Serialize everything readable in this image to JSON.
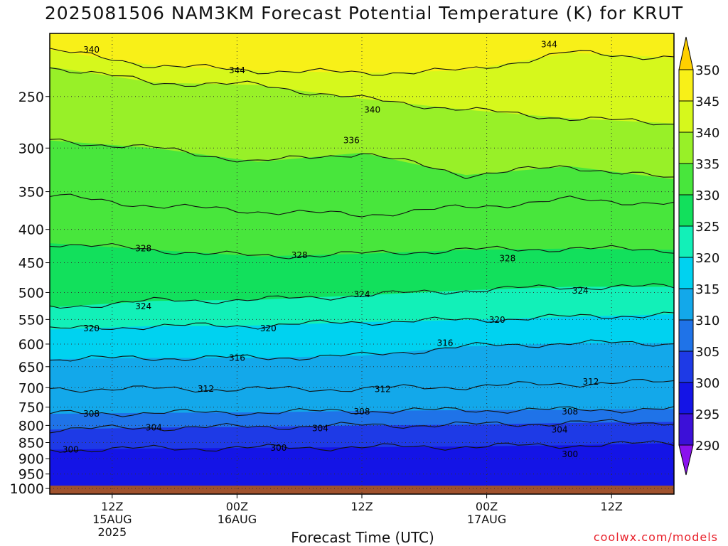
{
  "title": "2025081506 NAM3KM Forecast Potential Temperature (K) for KRUT",
  "xaxis_title": "Forecast Time (UTC)",
  "watermark": "coolwx.com/models",
  "chart_data": {
    "type": "heatmap",
    "title": "2025081506 NAM3KM Forecast Potential Temperature (K) for KRUT",
    "xlabel": "Forecast Time (UTC)",
    "ylabel": "",
    "y_scale": "log-pressure",
    "ylim": [
      1020,
      200
    ],
    "y_ticks": [
      250,
      300,
      350,
      400,
      450,
      500,
      550,
      600,
      650,
      700,
      750,
      800,
      850,
      900,
      950,
      1000
    ],
    "x_range_hours": [
      6,
      66
    ],
    "x_ticks": [
      {
        "hour": 12,
        "lines": [
          "12Z",
          "15AUG",
          "2025"
        ]
      },
      {
        "hour": 24,
        "lines": [
          "00Z",
          "16AUG"
        ]
      },
      {
        "hour": 36,
        "lines": [
          "12Z"
        ]
      },
      {
        "hour": 48,
        "lines": [
          "00Z",
          "17AUG"
        ]
      },
      {
        "hour": 60,
        "lines": [
          "12Z"
        ]
      }
    ],
    "grid": true,
    "colorbar": {
      "placement": "right",
      "levels": [
        290,
        295,
        300,
        305,
        310,
        315,
        320,
        325,
        330,
        335,
        340,
        345,
        350
      ],
      "colors": [
        "#8a12ee",
        "#3c10d8",
        "#1414e6",
        "#1e3ae6",
        "#1f73e8",
        "#13a8ea",
        "#00d2f0",
        "#12f0b8",
        "#12e05c",
        "#48e63c",
        "#98f028",
        "#d6f81c",
        "#f8f018",
        "#ffd000"
      ]
    },
    "contour_interval": 4,
    "contours": [
      {
        "level": 300,
        "pressure": [
          872,
          868,
          866,
          864,
          862,
          858,
          852
        ]
      },
      {
        "level": 304,
        "pressure": [
          812,
          806,
          804,
          800,
          798,
          793,
          790
        ]
      },
      {
        "level": 308,
        "pressure": [
          768,
          765,
          764,
          760,
          758,
          757,
          755
        ]
      },
      {
        "level": 312,
        "pressure": [
          703,
          703,
          704,
          703,
          697,
          690,
          686
        ]
      },
      {
        "level": 316,
        "pressure": [
          633,
          630,
          630,
          625,
          605,
          598,
          598
        ]
      },
      {
        "level": 320,
        "pressure": [
          570,
          563,
          562,
          555,
          551,
          545,
          540
        ]
      },
      {
        "level": 324,
        "pressure": [
          527,
          515,
          513,
          505,
          496,
          490,
          490
        ]
      },
      {
        "level": 328,
        "pressure": [
          420,
          430,
          440,
          436,
          430,
          428,
          430
        ]
      },
      {
        "level": 332,
        "pressure": [
          355,
          368,
          375,
          380,
          370,
          360,
          365
        ]
      },
      {
        "level": 336,
        "pressure": [
          292,
          300,
          315,
          305,
          330,
          320,
          335
        ]
      },
      {
        "level": 340,
        "pressure": [
          225,
          238,
          240,
          252,
          262,
          270,
          275
        ]
      },
      {
        "level": 344,
        "pressure": [
          212,
          224,
          228,
          230,
          228,
          214,
          218
        ]
      }
    ],
    "contour_hours": [
      6,
      16,
      26,
      36,
      46,
      56,
      66
    ],
    "labels": [
      {
        "text": "340",
        "hour": 10,
        "pressure": 212
      },
      {
        "text": "344",
        "hour": 24,
        "pressure": 228
      },
      {
        "text": "340",
        "hour": 37,
        "pressure": 262
      },
      {
        "text": "336",
        "hour": 35,
        "pressure": 292
      },
      {
        "text": "344",
        "hour": 54,
        "pressure": 208
      },
      {
        "text": "328",
        "hour": 15,
        "pressure": 428
      },
      {
        "text": "328",
        "hour": 30,
        "pressure": 438
      },
      {
        "text": "328",
        "hour": 50,
        "pressure": 443
      },
      {
        "text": "324",
        "hour": 15,
        "pressure": 525
      },
      {
        "text": "324",
        "hour": 36,
        "pressure": 503
      },
      {
        "text": "324",
        "hour": 57,
        "pressure": 497
      },
      {
        "text": "320",
        "hour": 10,
        "pressure": 568
      },
      {
        "text": "320",
        "hour": 27,
        "pressure": 568
      },
      {
        "text": "320",
        "hour": 49,
        "pressure": 551
      },
      {
        "text": "316",
        "hour": 24,
        "pressure": 630
      },
      {
        "text": "316",
        "hour": 44,
        "pressure": 598
      },
      {
        "text": "312",
        "hour": 21,
        "pressure": 703
      },
      {
        "text": "312",
        "hour": 38,
        "pressure": 704
      },
      {
        "text": "312",
        "hour": 58,
        "pressure": 686
      },
      {
        "text": "308",
        "hour": 10,
        "pressure": 768
      },
      {
        "text": "308",
        "hour": 36,
        "pressure": 762
      },
      {
        "text": "308",
        "hour": 56,
        "pressure": 762
      },
      {
        "text": "304",
        "hour": 16,
        "pressure": 806
      },
      {
        "text": "304",
        "hour": 32,
        "pressure": 808
      },
      {
        "text": "304",
        "hour": 55,
        "pressure": 812
      },
      {
        "text": "300",
        "hour": 8,
        "pressure": 872
      },
      {
        "text": "300",
        "hour": 28,
        "pressure": 866
      },
      {
        "text": "300",
        "hour": 56,
        "pressure": 886
      }
    ]
  }
}
